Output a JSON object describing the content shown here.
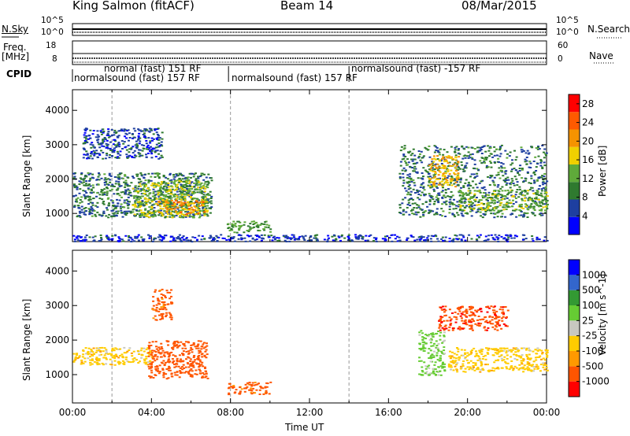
{
  "header": {
    "station": "King Salmon (fitACF)",
    "beam": "Beam 14",
    "date": "08/Mar/2015"
  },
  "side_labels": {
    "nsky": "N.Sky",
    "freq": "Freq.",
    "freq_unit": "[MHz]",
    "cpid": "CPID",
    "nsearch": "N.Search",
    "nave": "Nave"
  },
  "summary_axes": {
    "nsky_top": "10^5",
    "nsky_bottom": "10^0",
    "nsearch_top": "10^5",
    "nsearch_bottom": "10^0",
    "freq_top": "18",
    "freq_bottom": "8",
    "nave_top": "60",
    "nave_bottom": "0"
  },
  "cpid_labels": [
    {
      "text": "normal (fast) 151 RF",
      "row": 0
    },
    {
      "text": "normalsound (fast) 157 RF",
      "row": 1
    },
    {
      "text": "normalsound (fast) 157 RF",
      "row": 1
    },
    {
      "text": "normalsound (fast) -157 RF",
      "row": 0
    }
  ],
  "colors": {
    "power_scale": [
      "#0000ff",
      "#1e3fa0",
      "#2f7a2f",
      "#5faa3a",
      "#f0d000",
      "#f59300",
      "#ff5a00",
      "#ff0000"
    ],
    "velocity_scale": [
      "#ff0000",
      "#ff5500",
      "#ff9900",
      "#ffcc00",
      "#c8c8c0",
      "#66cc33",
      "#339933",
      "#3366cc",
      "#0000ff"
    ]
  },
  "chart_data": [
    {
      "type": "heatmap",
      "name": "Power",
      "xlabel": "Time UT",
      "ylabel": "Slant Range [km]",
      "xticks": [
        "00:00",
        "04:00",
        "08:00",
        "12:00",
        "16:00",
        "20:00",
        "00:00"
      ],
      "xlim_hours": [
        0,
        24
      ],
      "ylim_km": [
        180,
        4600
      ],
      "yticks": [
        1000,
        2000,
        3000,
        4000
      ],
      "grid": "dashed vertical at 02:00, 08:00, 14:00",
      "colorbar_label": "Power [dB]",
      "colorbar_ticks": [
        4,
        8,
        12,
        16,
        20,
        24,
        28
      ],
      "colorbar_range": [
        0,
        30
      ],
      "regions": [
        {
          "t0": 0.0,
          "t1": 7.0,
          "r0": 900,
          "r1": 2200,
          "level": 9
        },
        {
          "t0": 3.0,
          "t1": 6.8,
          "r0": 900,
          "r1": 2000,
          "level": 15
        },
        {
          "t0": 4.2,
          "t1": 6.7,
          "r0": 1000,
          "r1": 1400,
          "level": 22
        },
        {
          "t0": 0.5,
          "t1": 4.5,
          "r0": 2600,
          "r1": 3500,
          "level": 6
        },
        {
          "t0": 7.8,
          "t1": 10.0,
          "r0": 450,
          "r1": 800,
          "level": 12
        },
        {
          "t0": 16.5,
          "t1": 24.0,
          "r0": 900,
          "r1": 3000,
          "level": 9
        },
        {
          "t0": 18.0,
          "t1": 19.5,
          "r0": 1800,
          "r1": 2700,
          "level": 20
        },
        {
          "t0": 19.5,
          "t1": 24.0,
          "r0": 1100,
          "r1": 1700,
          "level": 14
        },
        {
          "t0": 0.0,
          "t1": 24.0,
          "r0": 200,
          "r1": 400,
          "level": 5
        }
      ]
    },
    {
      "type": "heatmap",
      "name": "Velocity",
      "xlabel": "Time UT",
      "ylabel": "Slant Range [km]",
      "xticks": [
        "00:00",
        "04:00",
        "08:00",
        "12:00",
        "16:00",
        "20:00",
        "00:00"
      ],
      "xlim_hours": [
        0,
        24
      ],
      "ylim_km": [
        180,
        4600
      ],
      "yticks": [
        1000,
        2000,
        3000,
        4000
      ],
      "grid": "dashed vertical at 02:00, 08:00, 14:00",
      "colorbar_label": "Velocity [m s^-1]",
      "colorbar_ticks": [
        "1000",
        "500",
        "100",
        "25",
        "-25",
        "-100",
        "-500",
        "-1000"
      ],
      "regions": [
        {
          "t0": 0.0,
          "t1": 4.0,
          "r0": 1300,
          "r1": 1800,
          "value": 0
        },
        {
          "t0": 3.8,
          "t1": 6.8,
          "r0": 900,
          "r1": 2000,
          "value": -300
        },
        {
          "t0": 4.0,
          "t1": 5.0,
          "r0": 2600,
          "r1": 3500,
          "value": -150
        },
        {
          "t0": 7.8,
          "t1": 10.0,
          "r0": 450,
          "r1": 800,
          "value": -150
        },
        {
          "t0": 17.5,
          "t1": 18.8,
          "r0": 1000,
          "r1": 2300,
          "value": 150
        },
        {
          "t0": 18.5,
          "t1": 22.0,
          "r0": 2300,
          "r1": 3000,
          "value": -400
        },
        {
          "t0": 19.0,
          "t1": 24.0,
          "r0": 1100,
          "r1": 1800,
          "value": 0
        }
      ]
    }
  ]
}
